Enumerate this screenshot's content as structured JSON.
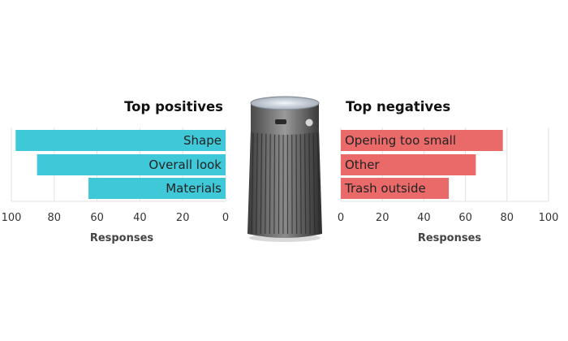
{
  "chart_data": [
    {
      "type": "bar",
      "orientation": "horizontal",
      "direction": "right-to-left",
      "title": "Top positives",
      "xlabel": "Responses",
      "categories": [
        "Shape",
        "Overall look",
        "Materials"
      ],
      "values": [
        98,
        88,
        64
      ],
      "xlim": [
        0,
        100
      ],
      "ticks": [
        "100",
        "80",
        "60",
        "40",
        "20",
        "0"
      ],
      "tick_values": [
        100,
        80,
        60,
        40,
        20,
        0
      ],
      "color": "#3fc8d8",
      "grid": true
    },
    {
      "type": "bar",
      "orientation": "horizontal",
      "direction": "left-to-right",
      "title": "Top negatives",
      "xlabel": "Responses",
      "categories": [
        "Opening too small",
        "Other",
        "Trash outside"
      ],
      "values": [
        78,
        65,
        52
      ],
      "xlim": [
        0,
        100
      ],
      "ticks": [
        "0",
        "20",
        "40",
        "60",
        "80",
        "100"
      ],
      "tick_values": [
        0,
        20,
        40,
        60,
        80,
        100
      ],
      "color": "#ea6a6a",
      "grid": true
    }
  ],
  "image": {
    "icon": "trash-can-image"
  }
}
